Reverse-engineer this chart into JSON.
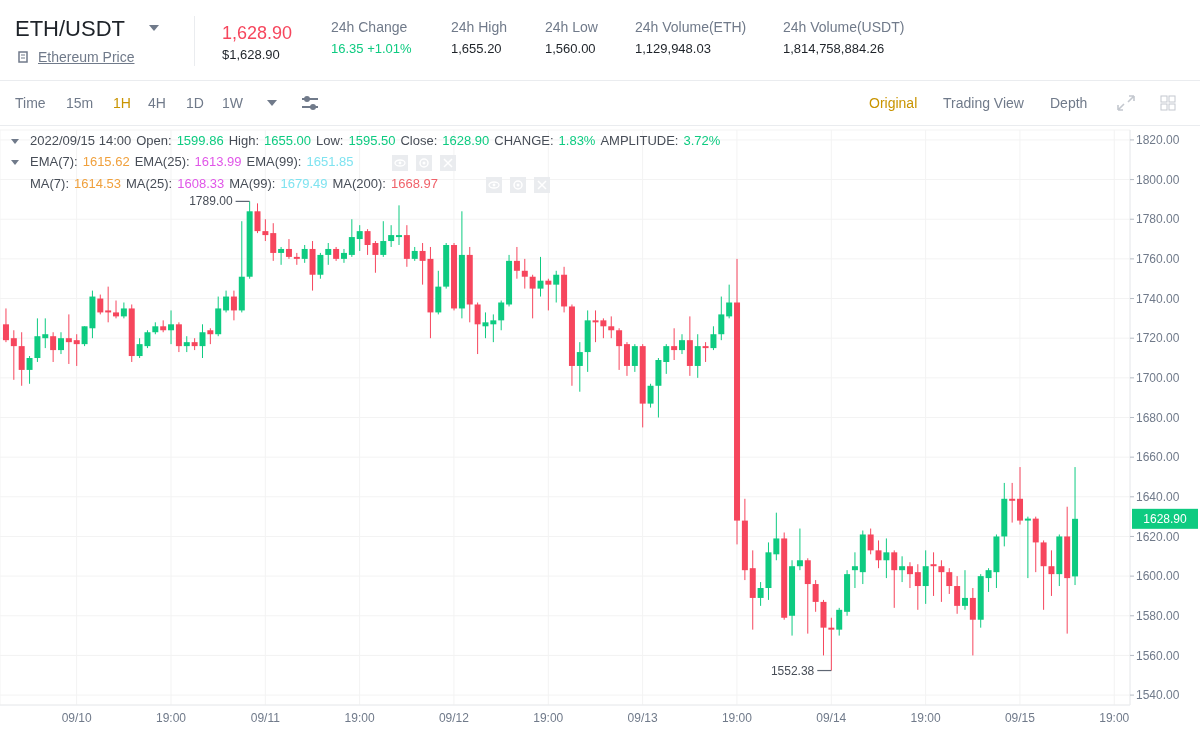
{
  "chart_data": {
    "type": "candlestick",
    "title": "ETH/USDT",
    "x": [
      "2022-09-09T22:00",
      "2022-09-09T23:00",
      "2022-09-10T00:00",
      "2022-09-10T01:00",
      "2022-09-10T02:00",
      "2022-09-10T03:00",
      "2022-09-10T04:00",
      "2022-09-10T05:00",
      "2022-09-10T06:00",
      "2022-09-10T07:00",
      "2022-09-10T08:00",
      "2022-09-10T09:00",
      "2022-09-10T10:00",
      "2022-09-10T11:00",
      "2022-09-10T12:00",
      "2022-09-10T13:00",
      "2022-09-10T14:00",
      "2022-09-10T15:00",
      "2022-09-10T16:00",
      "2022-09-10T17:00",
      "2022-09-10T18:00",
      "2022-09-10T19:00",
      "2022-09-10T20:00",
      "2022-09-10T21:00",
      "2022-09-10T22:00",
      "2022-09-10T23:00",
      "2022-09-11T00:00",
      "2022-09-11T01:00",
      "2022-09-11T02:00",
      "2022-09-11T03:00",
      "2022-09-11T04:00",
      "2022-09-11T05:00",
      "2022-09-11T06:00",
      "2022-09-11T07:00",
      "2022-09-11T08:00",
      "2022-09-11T09:00",
      "2022-09-11T10:00",
      "2022-09-11T11:00",
      "2022-09-11T12:00",
      "2022-09-11T13:00",
      "2022-09-11T14:00",
      "2022-09-11T15:00",
      "2022-09-11T16:00",
      "2022-09-11T17:00",
      "2022-09-11T18:00",
      "2022-09-11T19:00",
      "2022-09-11T20:00",
      "2022-09-11T21:00",
      "2022-09-11T22:00",
      "2022-09-11T23:00",
      "2022-09-12T00:00",
      "2022-09-12T01:00",
      "2022-09-12T02:00",
      "2022-09-12T03:00",
      "2022-09-12T04:00",
      "2022-09-12T05:00",
      "2022-09-12T06:00",
      "2022-09-12T07:00",
      "2022-09-12T08:00",
      "2022-09-12T09:00",
      "2022-09-12T10:00",
      "2022-09-12T11:00",
      "2022-09-12T12:00",
      "2022-09-12T13:00",
      "2022-09-12T14:00",
      "2022-09-12T15:00",
      "2022-09-12T16:00",
      "2022-09-12T17:00",
      "2022-09-12T18:00",
      "2022-09-12T19:00",
      "2022-09-12T20:00",
      "2022-09-12T21:00",
      "2022-09-12T22:00",
      "2022-09-12T23:00",
      "2022-09-13T00:00",
      "2022-09-13T01:00",
      "2022-09-13T02:00",
      "2022-09-13T03:00",
      "2022-09-13T04:00",
      "2022-09-13T05:00",
      "2022-09-13T06:00",
      "2022-09-13T07:00",
      "2022-09-13T08:00",
      "2022-09-13T09:00",
      "2022-09-13T10:00",
      "2022-09-13T11:00",
      "2022-09-13T12:00",
      "2022-09-13T13:00",
      "2022-09-13T14:00",
      "2022-09-13T15:00",
      "2022-09-13T16:00",
      "2022-09-13T17:00",
      "2022-09-13T18:00",
      "2022-09-13T19:00",
      "2022-09-13T20:00",
      "2022-09-13T21:00",
      "2022-09-13T22:00",
      "2022-09-13T23:00",
      "2022-09-14T00:00",
      "2022-09-14T01:00",
      "2022-09-14T02:00",
      "2022-09-14T03:00",
      "2022-09-14T04:00",
      "2022-09-14T05:00",
      "2022-09-14T06:00",
      "2022-09-14T07:00",
      "2022-09-14T08:00",
      "2022-09-14T09:00",
      "2022-09-14T10:00",
      "2022-09-14T11:00",
      "2022-09-14T12:00",
      "2022-09-14T13:00",
      "2022-09-14T14:00",
      "2022-09-14T15:00",
      "2022-09-14T16:00",
      "2022-09-14T17:00",
      "2022-09-14T18:00",
      "2022-09-14T19:00",
      "2022-09-14T20:00",
      "2022-09-14T21:00",
      "2022-09-14T22:00",
      "2022-09-14T23:00",
      "2022-09-15T00:00",
      "2022-09-15T01:00",
      "2022-09-15T02:00",
      "2022-09-15T03:00",
      "2022-09-15T04:00",
      "2022-09-15T05:00",
      "2022-09-15T06:00",
      "2022-09-15T07:00",
      "2022-09-15T08:00",
      "2022-09-15T09:00",
      "2022-09-15T10:00",
      "2022-09-15T11:00",
      "2022-09-15T12:00",
      "2022-09-15T13:00",
      "2022-09-15T14:00"
    ],
    "ohlc": [
      [
        1727,
        1735,
        1718,
        1719
      ],
      [
        1720,
        1724,
        1699,
        1716
      ],
      [
        1716,
        1723,
        1696,
        1704
      ],
      [
        1704,
        1711,
        1697,
        1710
      ],
      [
        1710,
        1730,
        1708,
        1721
      ],
      [
        1720,
        1730,
        1715,
        1722
      ],
      [
        1721,
        1723,
        1708,
        1714
      ],
      [
        1714,
        1723,
        1712,
        1720
      ],
      [
        1720,
        1732,
        1707,
        1718
      ],
      [
        1719,
        1722,
        1706,
        1717
      ],
      [
        1717,
        1726,
        1716,
        1726
      ],
      [
        1725,
        1744,
        1720,
        1741
      ],
      [
        1740,
        1742,
        1732,
        1733
      ],
      [
        1734,
        1746,
        1728,
        1733
      ],
      [
        1733,
        1739,
        1730,
        1731
      ],
      [
        1731,
        1738,
        1730,
        1735
      ],
      [
        1735,
        1737,
        1708,
        1711
      ],
      [
        1711,
        1720,
        1710,
        1717
      ],
      [
        1716,
        1724,
        1715,
        1723
      ],
      [
        1723,
        1728,
        1722,
        1726
      ],
      [
        1726,
        1729,
        1723,
        1724
      ],
      [
        1724,
        1734,
        1717,
        1727
      ],
      [
        1727,
        1728,
        1713,
        1716
      ],
      [
        1716,
        1721,
        1713,
        1718
      ],
      [
        1718,
        1720,
        1714,
        1716
      ],
      [
        1716,
        1727,
        1710,
        1723
      ],
      [
        1724,
        1725,
        1717,
        1722
      ],
      [
        1722,
        1741,
        1721,
        1735
      ],
      [
        1734,
        1744,
        1733,
        1741
      ],
      [
        1741,
        1744,
        1729,
        1734
      ],
      [
        1734,
        1779,
        1733,
        1751
      ],
      [
        1751,
        1789,
        1750,
        1784
      ],
      [
        1784,
        1788,
        1773,
        1774
      ],
      [
        1774,
        1780,
        1769,
        1772
      ],
      [
        1773,
        1778,
        1759,
        1763
      ],
      [
        1763,
        1766,
        1757,
        1765
      ],
      [
        1765,
        1770,
        1760,
        1761
      ],
      [
        1761,
        1763,
        1757,
        1760
      ],
      [
        1760,
        1767,
        1758,
        1765
      ],
      [
        1765,
        1769,
        1744,
        1752
      ],
      [
        1752,
        1763,
        1750,
        1762
      ],
      [
        1762,
        1768,
        1757,
        1765
      ],
      [
        1765,
        1766,
        1759,
        1760
      ],
      [
        1760,
        1765,
        1758,
        1763
      ],
      [
        1762,
        1780,
        1761,
        1771
      ],
      [
        1770,
        1777,
        1764,
        1774
      ],
      [
        1774,
        1775,
        1762,
        1767
      ],
      [
        1768,
        1769,
        1753,
        1762
      ],
      [
        1762,
        1779,
        1761,
        1769
      ],
      [
        1769,
        1777,
        1766,
        1772
      ],
      [
        1771,
        1787,
        1767,
        1772
      ],
      [
        1772,
        1777,
        1756,
        1760
      ],
      [
        1760,
        1766,
        1759,
        1764
      ],
      [
        1764,
        1768,
        1747,
        1759
      ],
      [
        1760,
        1766,
        1720,
        1733
      ],
      [
        1733,
        1754,
        1732,
        1746
      ],
      [
        1746,
        1768,
        1745,
        1767
      ],
      [
        1767,
        1768,
        1734,
        1735
      ],
      [
        1735,
        1784,
        1730,
        1762
      ],
      [
        1762,
        1766,
        1728,
        1737
      ],
      [
        1737,
        1738,
        1712,
        1727
      ],
      [
        1726,
        1733,
        1720,
        1728
      ],
      [
        1727,
        1732,
        1718,
        1729
      ],
      [
        1729,
        1739,
        1724,
        1738
      ],
      [
        1737,
        1762,
        1736,
        1759
      ],
      [
        1759,
        1766,
        1750,
        1754
      ],
      [
        1754,
        1760,
        1745,
        1751
      ],
      [
        1751,
        1752,
        1730,
        1745
      ],
      [
        1745,
        1761,
        1741,
        1749
      ],
      [
        1749,
        1750,
        1734,
        1747
      ],
      [
        1747,
        1754,
        1738,
        1752
      ],
      [
        1752,
        1756,
        1733,
        1736
      ],
      [
        1736,
        1737,
        1696,
        1706
      ],
      [
        1706,
        1718,
        1693,
        1713
      ],
      [
        1713,
        1734,
        1703,
        1729
      ],
      [
        1729,
        1734,
        1718,
        1728
      ],
      [
        1729,
        1730,
        1720,
        1726
      ],
      [
        1726,
        1731,
        1720,
        1724
      ],
      [
        1724,
        1725,
        1704,
        1716
      ],
      [
        1717,
        1718,
        1701,
        1706
      ],
      [
        1706,
        1717,
        1703,
        1716
      ],
      [
        1716,
        1717,
        1675,
        1687
      ],
      [
        1687,
        1697,
        1685,
        1696
      ],
      [
        1696,
        1710,
        1680,
        1709
      ],
      [
        1708,
        1717,
        1702,
        1716
      ],
      [
        1716,
        1725,
        1709,
        1714
      ],
      [
        1714,
        1722,
        1712,
        1719
      ],
      [
        1719,
        1731,
        1701,
        1706
      ],
      [
        1706,
        1722,
        1700,
        1716
      ],
      [
        1716,
        1718,
        1708,
        1715
      ],
      [
        1715,
        1726,
        1714,
        1722
      ],
      [
        1722,
        1741,
        1719,
        1732
      ],
      [
        1731,
        1747,
        1730,
        1738
      ],
      [
        1738,
        1760,
        1616,
        1628
      ],
      [
        1628,
        1639,
        1598,
        1603
      ],
      [
        1604,
        1613,
        1573,
        1589
      ],
      [
        1589,
        1597,
        1585,
        1594
      ],
      [
        1594,
        1617,
        1588,
        1612
      ],
      [
        1611,
        1632,
        1608,
        1619
      ],
      [
        1619,
        1622,
        1578,
        1579
      ],
      [
        1580,
        1608,
        1570,
        1605
      ],
      [
        1605,
        1624,
        1603,
        1608
      ],
      [
        1608,
        1609,
        1571,
        1596
      ],
      [
        1596,
        1598,
        1582,
        1587
      ],
      [
        1587,
        1588,
        1560,
        1574
      ],
      [
        1574,
        1579,
        1552.38,
        1573
      ],
      [
        1573,
        1584,
        1570,
        1583
      ],
      [
        1582,
        1603,
        1580,
        1601
      ],
      [
        1603,
        1612,
        1594,
        1605
      ],
      [
        1602,
        1623,
        1596,
        1621
      ],
      [
        1621,
        1624,
        1611,
        1613
      ],
      [
        1613,
        1618,
        1604,
        1608
      ],
      [
        1608,
        1619,
        1599,
        1612
      ],
      [
        1612,
        1613,
        1584,
        1603
      ],
      [
        1603,
        1610,
        1597,
        1605
      ],
      [
        1605,
        1607,
        1594,
        1601
      ],
      [
        1602,
        1606,
        1583,
        1595
      ],
      [
        1595,
        1613,
        1586,
        1605
      ],
      [
        1606,
        1612,
        1590,
        1605
      ],
      [
        1605,
        1608,
        1587,
        1602
      ],
      [
        1602,
        1604,
        1591,
        1595
      ],
      [
        1595,
        1600,
        1581,
        1585
      ],
      [
        1585,
        1603,
        1583,
        1589
      ],
      [
        1589,
        1594,
        1560,
        1578
      ],
      [
        1578,
        1601,
        1574,
        1600
      ],
      [
        1599,
        1604,
        1592,
        1603
      ],
      [
        1602,
        1621,
        1594,
        1620
      ],
      [
        1620,
        1647,
        1615,
        1639
      ],
      [
        1639,
        1647,
        1627,
        1638
      ],
      [
        1639,
        1655,
        1626,
        1628
      ],
      [
        1628,
        1630,
        1599,
        1629
      ],
      [
        1629,
        1630,
        1602,
        1617
      ],
      [
        1617,
        1618,
        1583,
        1605
      ],
      [
        1605,
        1613,
        1590,
        1601
      ],
      [
        1601,
        1621,
        1595,
        1620
      ],
      [
        1620,
        1635,
        1571,
        1599
      ],
      [
        1599.86,
        1655,
        1595.5,
        1628.9
      ]
    ],
    "xlim": [
      "2022-09-09T21:15",
      "2022-09-15T21:00"
    ],
    "xticks": [
      {
        "value": "2022-09-10T07:00",
        "label": "09/10"
      },
      {
        "value": "2022-09-10T19:00",
        "label": "19:00"
      },
      {
        "value": "2022-09-11T07:00",
        "label": "09/11"
      },
      {
        "value": "2022-09-11T19:00",
        "label": "19:00"
      },
      {
        "value": "2022-09-12T07:00",
        "label": "09/12"
      },
      {
        "value": "2022-09-12T19:00",
        "label": "19:00"
      },
      {
        "value": "2022-09-13T07:00",
        "label": "09/13"
      },
      {
        "value": "2022-09-13T19:00",
        "label": "19:00"
      },
      {
        "value": "2022-09-14T07:00",
        "label": "09/14"
      },
      {
        "value": "2022-09-14T19:00",
        "label": "19:00"
      },
      {
        "value": "2022-09-15T07:00",
        "label": "09/15"
      },
      {
        "value": "2022-09-15T19:00",
        "label": "19:00"
      }
    ],
    "ylim": [
      1535,
      1825
    ],
    "yticks": [
      {
        "value": 1540,
        "label": "1540.00"
      },
      {
        "value": 1560,
        "label": "1560.00"
      },
      {
        "value": 1580,
        "label": "1580.00"
      },
      {
        "value": 1600,
        "label": "1600.00"
      },
      {
        "value": 1620,
        "label": "1620.00"
      },
      {
        "value": 1640,
        "label": "1640.00"
      },
      {
        "value": 1660,
        "label": "1660.00"
      },
      {
        "value": 1680,
        "label": "1680.00"
      },
      {
        "value": 1700,
        "label": "1700.00"
      },
      {
        "value": 1720,
        "label": "1720.00"
      },
      {
        "value": 1740,
        "label": "1740.00"
      },
      {
        "value": 1760,
        "label": "1760.00"
      },
      {
        "value": 1780,
        "label": "1780.00"
      },
      {
        "value": 1800,
        "label": "1800.00"
      },
      {
        "value": 1820,
        "label": "1820.00"
      }
    ],
    "grid": true,
    "annotations": [
      "Ethereum Price",
      "1,628.90",
      "$1,628.90",
      "24h Change",
      "16.35 +1.01%",
      "24h High",
      "1,655.20",
      "24h Low",
      "1,560.00",
      "24h Volume(ETH)",
      "1,129,948.03",
      "24h Volume(USDT)",
      "1,814,758,884.26",
      "Time",
      "15m",
      "1H",
      "4H",
      "1D",
      "1W",
      "Original",
      "Trading View",
      "Depth",
      "2022/09/15 14:00",
      "Open:",
      "1599.86",
      "High:",
      "1655.00",
      "Low:",
      "1595.50",
      "Close:",
      "1628.90",
      "CHANGE:",
      "1.83%",
      "AMPLITUDE:",
      "3.72%",
      "EMA(7):",
      "1615.62",
      "EMA(25):",
      "1613.99",
      "EMA(99):",
      "1651.85",
      "MA(7):",
      "1614.53",
      "MA(25):",
      "1608.33",
      "MA(99):",
      "1679.49",
      "MA(200):",
      "1668.97",
      {
        "text": "1789.00",
        "x": "2022-09-11T05:00",
        "y": 1789
      },
      {
        "text": "1552.38",
        "x": "2022-09-14T07:00",
        "y": 1552.38
      },
      "1628.90"
    ]
  }
}
